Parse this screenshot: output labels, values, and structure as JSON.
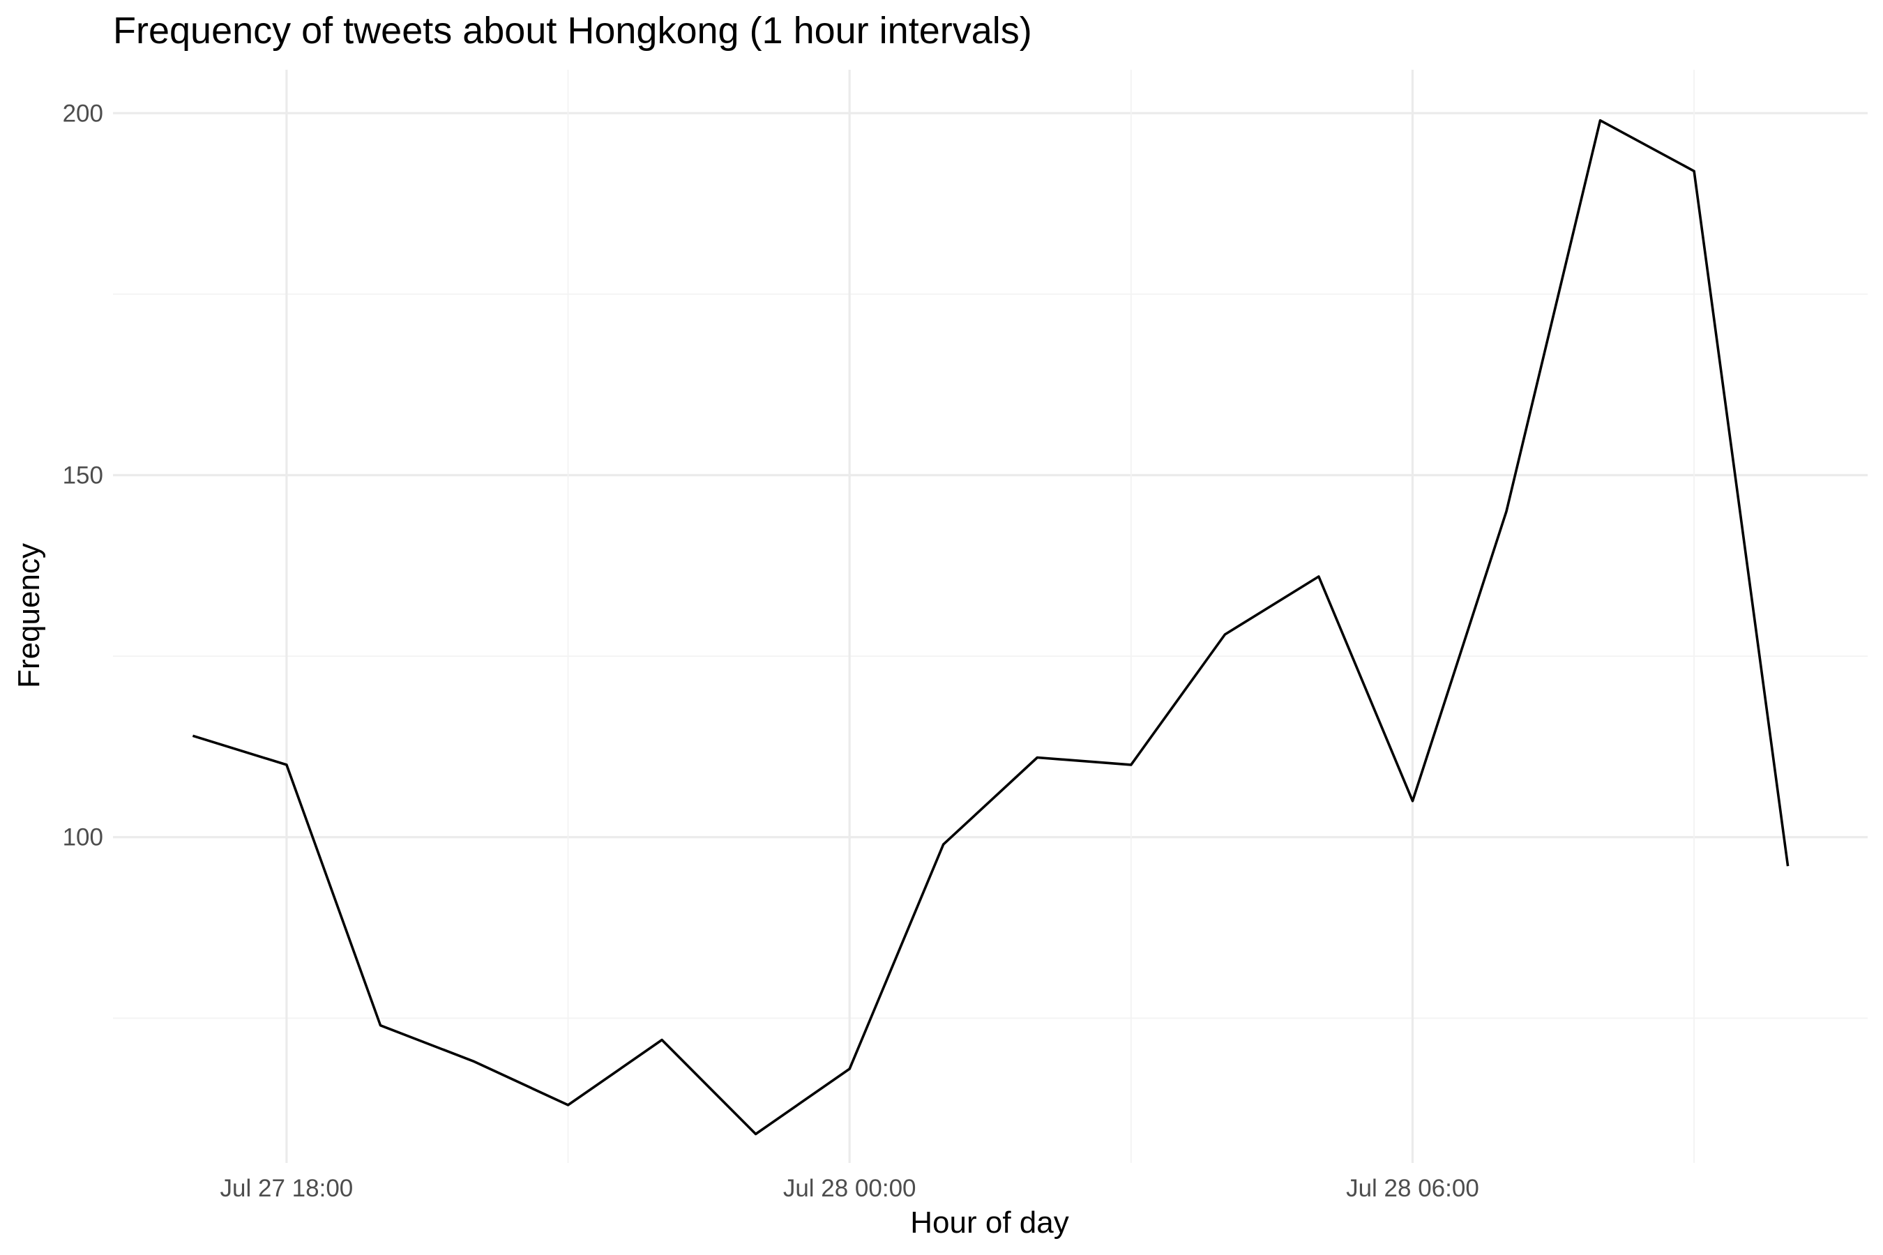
{
  "chart_data": {
    "type": "line",
    "title": "Frequency of tweets about Hongkong (1 hour intervals)",
    "xlabel": "Hour of day",
    "ylabel": "Frequency",
    "x": [
      "2019-07-27 17:00",
      "2019-07-27 18:00",
      "2019-07-27 19:00",
      "2019-07-27 20:00",
      "2019-07-27 21:00",
      "2019-07-27 22:00",
      "2019-07-27 23:00",
      "2019-07-28 00:00",
      "2019-07-28 01:00",
      "2019-07-28 02:00",
      "2019-07-28 03:00",
      "2019-07-28 04:00",
      "2019-07-28 05:00",
      "2019-07-28 06:00",
      "2019-07-28 07:00",
      "2019-07-28 08:00",
      "2019-07-28 09:00",
      "2019-07-28 10:00"
    ],
    "series": [
      {
        "values": [
          114,
          110,
          74,
          69,
          63,
          72,
          59,
          68,
          99,
          111,
          110,
          128,
          136,
          105,
          145,
          199,
          192,
          96
        ]
      }
    ],
    "ylim": [
      55,
      206
    ],
    "xlim": [
      "2019-07-27 16:09",
      "2019-07-28 10:51"
    ],
    "y_ticks": [
      100,
      150,
      200
    ],
    "y_tick_labels": [
      "100",
      "150",
      "200"
    ],
    "x_ticks": [
      "2019-07-27 18:00",
      "2019-07-28 00:00",
      "2019-07-28 06:00"
    ],
    "x_tick_labels": [
      "Jul 27 18:00",
      "Jul 28 00:00",
      "Jul 28 06:00"
    ],
    "grid": true,
    "legend": "none",
    "line_color": "#000000",
    "grid_color": "#ebebeb",
    "background_color": "#ffffff"
  }
}
